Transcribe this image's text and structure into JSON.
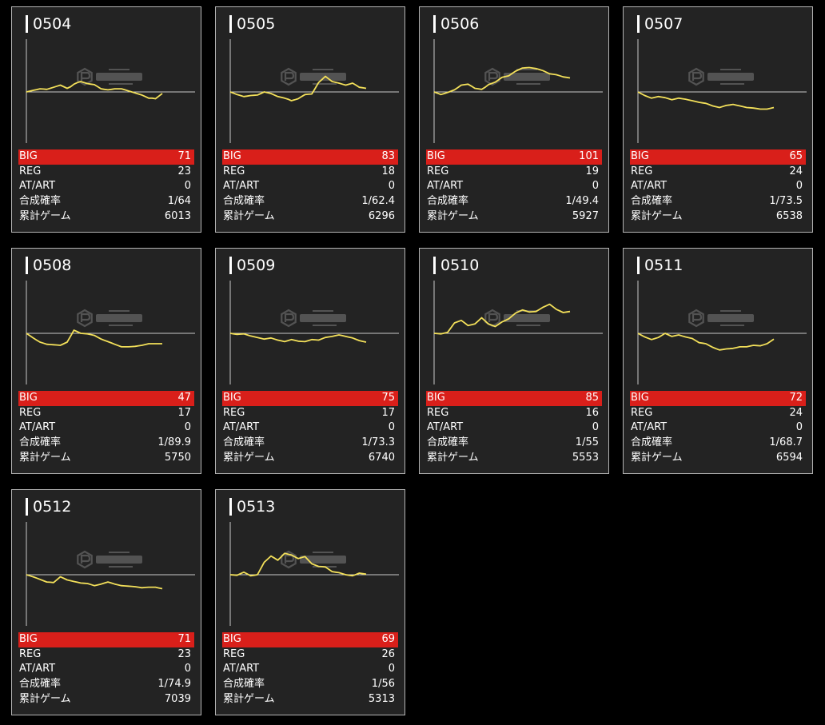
{
  "colors": {
    "page_background": "#000000",
    "card_background": "#232323",
    "card_border": "#b4b4b4",
    "big_row": "#d91f1a",
    "graph_line": "#f3e05a",
    "axis": "#c8c8c8",
    "text": "#ffffff"
  },
  "watermark_icon": "ps-cube-logo",
  "labels": {
    "big": "BIG",
    "reg": "REG",
    "at_art": "AT/ART",
    "combined_rate": "合成確率",
    "total_games": "累計ゲーム"
  },
  "machines": [
    {
      "number": "0504",
      "big": "71",
      "reg": "23",
      "at_art": "0",
      "rate": "1/64",
      "games": "6013"
    },
    {
      "number": "0505",
      "big": "83",
      "reg": "18",
      "at_art": "0",
      "rate": "1/62.4",
      "games": "6296"
    },
    {
      "number": "0506",
      "big": "101",
      "reg": "19",
      "at_art": "0",
      "rate": "1/49.4",
      "games": "5927"
    },
    {
      "number": "0507",
      "big": "65",
      "reg": "24",
      "at_art": "0",
      "rate": "1/73.5",
      "games": "6538"
    },
    {
      "number": "0508",
      "big": "47",
      "reg": "17",
      "at_art": "0",
      "rate": "1/89.9",
      "games": "5750"
    },
    {
      "number": "0509",
      "big": "75",
      "reg": "17",
      "at_art": "0",
      "rate": "1/73.3",
      "games": "6740"
    },
    {
      "number": "0510",
      "big": "85",
      "reg": "16",
      "at_art": "0",
      "rate": "1/55",
      "games": "5553"
    },
    {
      "number": "0511",
      "big": "72",
      "reg": "24",
      "at_art": "0",
      "rate": "1/68.7",
      "games": "6594"
    },
    {
      "number": "0512",
      "big": "71",
      "reg": "23",
      "at_art": "0",
      "rate": "1/74.9",
      "games": "7039"
    },
    {
      "number": "0513",
      "big": "69",
      "reg": "26",
      "at_art": "0",
      "rate": "1/56",
      "games": "5313"
    }
  ],
  "chart_data": [
    {
      "type": "line",
      "machine": "0504",
      "x": [
        0,
        0.5,
        1,
        1.5,
        2,
        2.5,
        3,
        3.5,
        4,
        4.5,
        5,
        5.5,
        6,
        6.5,
        7,
        7.5,
        8,
        8.5,
        9,
        9.5,
        10,
        10.5,
        11,
        11.5,
        12,
        12.5,
        13,
        13.5,
        14,
        14.5,
        15,
        15.5,
        16,
        16.5,
        17,
        17.5,
        18,
        18.5,
        19,
        19.5,
        20
      ],
      "y": [
        0,
        0.15,
        0.3,
        0.45,
        0.6,
        0.55,
        0.5,
        0.7,
        0.9,
        1.1,
        1.3,
        1.0,
        0.7,
        1.0,
        1.5,
        1.8,
        2.0,
        1.8,
        1.6,
        1.5,
        1.4,
        1.0,
        0.6,
        0.5,
        0.4,
        0.5,
        0.6,
        0.6,
        0.6,
        0.4,
        0.2,
        0.0,
        -0.2,
        -0.4,
        -0.6,
        -0.9,
        -1.2,
        -1.2,
        -1.3,
        -0.8,
        -0.3
      ],
      "ylim": [
        -10,
        10
      ]
    },
    {
      "type": "line",
      "machine": "0505",
      "x": [
        0,
        0.5,
        1,
        1.5,
        2,
        2.5,
        3,
        3.5,
        4,
        4.5,
        5,
        5.5,
        6,
        6.5,
        7,
        7.5,
        8,
        8.5,
        9,
        9.5,
        10,
        10.5,
        11,
        11.5,
        12,
        12.5,
        13,
        13.5,
        14,
        14.5,
        15,
        15.5,
        16,
        16.5,
        17,
        17.5,
        18,
        18.5,
        19,
        19.5,
        20
      ],
      "y": [
        0,
        -0.25,
        -0.5,
        -0.7,
        -0.9,
        -0.8,
        -0.7,
        -0.65,
        -0.6,
        -0.3,
        0.0,
        -0.15,
        -0.3,
        -0.6,
        -0.9,
        -1.05,
        -1.2,
        -1.4,
        -1.7,
        -1.5,
        -1.3,
        -0.9,
        -0.5,
        -0.45,
        -0.4,
        0.7,
        1.8,
        2.4,
        3.0,
        2.5,
        2.0,
        1.85,
        1.7,
        1.5,
        1.3,
        1.5,
        1.7,
        1.3,
        0.9,
        0.8,
        0.7
      ],
      "ylim": [
        -10,
        10
      ]
    },
    {
      "type": "line",
      "machine": "0506",
      "x": [
        0,
        0.5,
        1,
        1.5,
        2,
        2.5,
        3,
        3.5,
        4,
        4.5,
        5,
        5.5,
        6,
        6.5,
        7,
        7.5,
        8,
        8.5,
        9,
        9.5,
        10,
        10.5,
        11,
        11.5,
        12,
        12.5,
        13,
        13.5,
        14,
        14.5,
        15,
        15.5,
        16,
        16.5,
        17,
        17.5,
        18,
        18.5,
        19,
        19.5,
        20
      ],
      "y": [
        0,
        -0.25,
        -0.5,
        -0.3,
        -0.1,
        0.15,
        0.4,
        0.85,
        1.3,
        1.4,
        1.5,
        1.1,
        0.7,
        0.6,
        0.5,
        0.9,
        1.4,
        1.65,
        1.9,
        2.35,
        2.8,
        2.95,
        3.1,
        3.55,
        4.0,
        4.3,
        4.6,
        4.65,
        4.7,
        4.6,
        4.5,
        4.3,
        4.1,
        3.8,
        3.5,
        3.4,
        3.3,
        3.1,
        2.9,
        2.8,
        2.7
      ],
      "ylim": [
        -10,
        10
      ]
    },
    {
      "type": "line",
      "machine": "0507",
      "x": [
        0,
        0.5,
        1,
        1.5,
        2,
        2.5,
        3,
        3.5,
        4,
        4.5,
        5,
        5.5,
        6,
        6.5,
        7,
        7.5,
        8,
        8.5,
        9,
        9.5,
        10,
        10.5,
        11,
        11.5,
        12,
        12.5,
        13,
        13.5,
        14,
        14.5,
        15,
        15.5,
        16,
        16.5,
        17,
        17.5,
        18,
        18.5,
        19,
        19.5,
        20
      ],
      "y": [
        0,
        -0.35,
        -0.7,
        -0.95,
        -1.2,
        -1.05,
        -0.9,
        -1.0,
        -1.1,
        -1.3,
        -1.5,
        -1.35,
        -1.2,
        -1.3,
        -1.4,
        -1.55,
        -1.7,
        -1.85,
        -2.0,
        -2.1,
        -2.2,
        -2.45,
        -2.7,
        -2.85,
        -3.0,
        -2.8,
        -2.6,
        -2.5,
        -2.4,
        -2.55,
        -2.7,
        -2.85,
        -3.0,
        -3.05,
        -3.1,
        -3.2,
        -3.3,
        -3.3,
        -3.3,
        -3.15,
        -3.0
      ],
      "ylim": [
        -10,
        10
      ]
    },
    {
      "type": "line",
      "machine": "0508",
      "x": [
        0,
        0.5,
        1,
        1.5,
        2,
        2.5,
        3,
        3.5,
        4,
        4.5,
        5,
        5.5,
        6,
        6.5,
        7,
        7.5,
        8,
        8.5,
        9,
        9.5,
        10,
        10.5,
        11,
        11.5,
        12,
        12.5,
        13,
        13.5,
        14,
        14.5,
        15,
        15.5,
        16,
        16.5,
        17,
        17.5,
        18,
        18.5,
        19,
        19.5,
        20
      ],
      "y": [
        0,
        -0.45,
        -0.9,
        -1.3,
        -1.7,
        -1.9,
        -2.1,
        -2.15,
        -2.2,
        -2.25,
        -2.3,
        -2.0,
        -1.7,
        -0.55,
        0.6,
        0.3,
        0.0,
        -0.05,
        -0.1,
        -0.25,
        -0.4,
        -0.75,
        -1.1,
        -1.35,
        -1.6,
        -1.85,
        -2.1,
        -2.35,
        -2.6,
        -2.6,
        -2.6,
        -2.55,
        -2.5,
        -2.4,
        -2.3,
        -2.15,
        -2.0,
        -2.0,
        -2.0,
        -2.0,
        -2.0
      ],
      "ylim": [
        -10,
        10
      ]
    },
    {
      "type": "line",
      "machine": "0509",
      "x": [
        0,
        0.5,
        1,
        1.5,
        2,
        2.5,
        3,
        3.5,
        4,
        4.5,
        5,
        5.5,
        6,
        6.5,
        7,
        7.5,
        8,
        8.5,
        9,
        9.5,
        10,
        10.5,
        11,
        11.5,
        12,
        12.5,
        13,
        13.5,
        14,
        14.5,
        15,
        15.5,
        16,
        16.5,
        17,
        17.5,
        18,
        18.5,
        19,
        19.5,
        20
      ],
      "y": [
        0,
        -0.1,
        -0.2,
        -0.15,
        -0.1,
        -0.3,
        -0.5,
        -0.65,
        -0.8,
        -0.95,
        -1.1,
        -1.0,
        -0.9,
        -1.1,
        -1.3,
        -1.45,
        -1.6,
        -1.4,
        -1.2,
        -1.35,
        -1.5,
        -1.55,
        -1.6,
        -1.4,
        -1.2,
        -1.25,
        -1.3,
        -1.05,
        -0.8,
        -0.7,
        -0.6,
        -0.45,
        -0.3,
        -0.45,
        -0.6,
        -0.75,
        -0.9,
        -1.15,
        -1.4,
        -1.55,
        -1.7
      ],
      "ylim": [
        -10,
        10
      ]
    },
    {
      "type": "line",
      "machine": "0510",
      "x": [
        0,
        0.5,
        1,
        1.5,
        2,
        2.5,
        3,
        3.5,
        4,
        4.5,
        5,
        5.5,
        6,
        6.5,
        7,
        7.5,
        8,
        8.5,
        9,
        9.5,
        10,
        10.5,
        11,
        11.5,
        12,
        12.5,
        13,
        13.5,
        14,
        14.5,
        15,
        15.5,
        16,
        16.5,
        17,
        17.5,
        18,
        18.5,
        19,
        19.5,
        20
      ],
      "y": [
        0,
        -0.05,
        -0.1,
        0.05,
        0.2,
        1.1,
        2.0,
        2.25,
        2.5,
        2.0,
        1.5,
        1.65,
        1.8,
        2.4,
        3.0,
        2.4,
        1.8,
        1.55,
        1.3,
        1.75,
        2.2,
        2.5,
        2.8,
        3.35,
        3.9,
        4.2,
        4.5,
        4.3,
        4.1,
        4.15,
        4.2,
        4.6,
        5.0,
        5.3,
        5.6,
        5.1,
        4.6,
        4.3,
        4.0,
        4.1,
        4.2
      ],
      "ylim": [
        -10,
        10
      ]
    },
    {
      "type": "line",
      "machine": "0511",
      "x": [
        0,
        0.5,
        1,
        1.5,
        2,
        2.5,
        3,
        3.5,
        4,
        4.5,
        5,
        5.5,
        6,
        6.5,
        7,
        7.5,
        8,
        8.5,
        9,
        9.5,
        10,
        10.5,
        11,
        11.5,
        12,
        12.5,
        13,
        13.5,
        14,
        14.5,
        15,
        15.5,
        16,
        16.5,
        17,
        17.5,
        18,
        18.5,
        19,
        19.5,
        20
      ],
      "y": [
        0,
        -0.35,
        -0.7,
        -0.95,
        -1.2,
        -1.0,
        -0.8,
        -0.4,
        0.0,
        -0.3,
        -0.6,
        -0.45,
        -0.3,
        -0.5,
        -0.7,
        -0.85,
        -1.0,
        -1.4,
        -1.8,
        -1.9,
        -2.0,
        -2.35,
        -2.7,
        -2.95,
        -3.2,
        -3.1,
        -3.0,
        -2.95,
        -2.9,
        -2.75,
        -2.6,
        -2.6,
        -2.6,
        -2.45,
        -2.3,
        -2.35,
        -2.4,
        -2.2,
        -2.0,
        -1.55,
        -1.1
      ],
      "ylim": [
        -10,
        10
      ]
    },
    {
      "type": "line",
      "machine": "0512",
      "x": [
        0,
        0.5,
        1,
        1.5,
        2,
        2.5,
        3,
        3.5,
        4,
        4.5,
        5,
        5.5,
        6,
        6.5,
        7,
        7.5,
        8,
        8.5,
        9,
        9.5,
        10,
        10.5,
        11,
        11.5,
        12,
        12.5,
        13,
        13.5,
        14,
        14.5,
        15,
        15.5,
        16,
        16.5,
        17,
        17.5,
        18,
        18.5,
        19,
        19.5,
        20
      ],
      "y": [
        0,
        -0.2,
        -0.4,
        -0.65,
        -0.9,
        -1.15,
        -1.4,
        -1.45,
        -1.5,
        -0.95,
        -0.4,
        -0.7,
        -1.0,
        -1.15,
        -1.3,
        -1.45,
        -1.6,
        -1.65,
        -1.7,
        -1.9,
        -2.1,
        -1.95,
        -1.8,
        -1.6,
        -1.4,
        -1.6,
        -1.8,
        -1.95,
        -2.1,
        -2.15,
        -2.2,
        -2.25,
        -2.3,
        -2.4,
        -2.5,
        -2.45,
        -2.4,
        -2.4,
        -2.4,
        -2.55,
        -2.7
      ],
      "ylim": [
        -10,
        10
      ]
    },
    {
      "type": "line",
      "machine": "0513",
      "x": [
        0,
        0.5,
        1,
        1.5,
        2,
        2.5,
        3,
        3.5,
        4,
        4.5,
        5,
        5.5,
        6,
        6.5,
        7,
        7.5,
        8,
        8.5,
        9,
        9.5,
        10,
        10.5,
        11,
        11.5,
        12,
        12.5,
        13,
        13.5,
        14,
        14.5,
        15,
        15.5,
        16,
        16.5,
        17,
        17.5,
        18,
        18.5,
        19,
        19.5,
        20
      ],
      "y": [
        0,
        -0.05,
        -0.1,
        0.2,
        0.5,
        0.15,
        -0.2,
        -0.1,
        0.0,
        1.2,
        2.4,
        3.0,
        3.6,
        3.2,
        2.8,
        3.45,
        4.1,
        3.95,
        3.8,
        3.45,
        3.1,
        3.3,
        3.5,
        2.8,
        2.1,
        1.85,
        1.6,
        1.55,
        1.5,
        1.05,
        0.6,
        0.5,
        0.4,
        0.2,
        0.0,
        -0.1,
        -0.2,
        0.05,
        0.3,
        0.2,
        0.1
      ],
      "ylim": [
        -10,
        10
      ]
    }
  ]
}
